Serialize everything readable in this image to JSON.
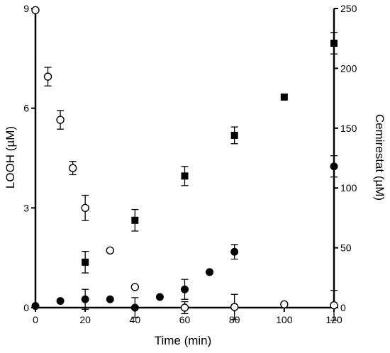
{
  "chart_data": {
    "type": "scatter",
    "xlabel": "Time (min)",
    "ylabel_left": "LOOH (µM)",
    "ylabel_right": "Cemirestat (µM)",
    "xlim": [
      0,
      120
    ],
    "ylim_left": [
      0,
      9
    ],
    "ylim_right": [
      0,
      250
    ],
    "x_ticks": [
      0,
      20,
      40,
      60,
      80,
      100,
      120
    ],
    "y_left_ticks": [
      0,
      3,
      6,
      9
    ],
    "y_right_ticks": [
      0,
      50,
      100,
      150,
      200,
      250
    ],
    "grid": false,
    "series": [
      {
        "marker": "open-circle",
        "axis": "left",
        "color": "#000000",
        "points": [
          {
            "x": 0,
            "y": 8.95,
            "err": 0
          },
          {
            "x": 5,
            "y": 6.95,
            "err": 0.28
          },
          {
            "x": 10,
            "y": 5.65,
            "err": 0.28
          },
          {
            "x": 15,
            "y": 4.2,
            "err": 0.2
          },
          {
            "x": 20,
            "y": 3.0,
            "err": 0.38
          },
          {
            "x": 30,
            "y": 1.72,
            "err": 0
          },
          {
            "x": 40,
            "y": 0.62,
            "err": 0
          },
          {
            "x": 60,
            "y": 0.0,
            "err": 0.18
          },
          {
            "x": 80,
            "y": 0.02,
            "err": 0.38
          },
          {
            "x": 100,
            "y": 0.1,
            "err": 0
          },
          {
            "x": 120,
            "y": 0.07,
            "err": 0.45
          }
        ]
      },
      {
        "marker": "filled-circle",
        "axis": "left",
        "color": "#000000",
        "points": [
          {
            "x": 0,
            "y": 0.05,
            "err": 0
          },
          {
            "x": 10,
            "y": 0.2,
            "err": 0
          },
          {
            "x": 20,
            "y": 0.25,
            "err": 0.3
          },
          {
            "x": 30,
            "y": 0.25,
            "err": 0
          },
          {
            "x": 40,
            "y": 0.0,
            "err": 0.3
          },
          {
            "x": 50,
            "y": 0.32,
            "err": 0
          },
          {
            "x": 60,
            "y": 0.55,
            "err": 0.3
          },
          {
            "x": 70,
            "y": 1.07,
            "err": 0
          },
          {
            "x": 80,
            "y": 1.68,
            "err": 0.22
          },
          {
            "x": 120,
            "y": 4.25,
            "err": 0.32
          }
        ]
      },
      {
        "marker": "filled-square",
        "axis": "right",
        "color": "#000000",
        "points": [
          {
            "x": 20,
            "y": 38,
            "err": 9
          },
          {
            "x": 40,
            "y": 73,
            "err": 9
          },
          {
            "x": 60,
            "y": 110,
            "err": 8
          },
          {
            "x": 80,
            "y": 144,
            "err": 7
          },
          {
            "x": 100,
            "y": 176,
            "err": 0
          },
          {
            "x": 120,
            "y": 221,
            "err": 9
          }
        ]
      }
    ]
  }
}
